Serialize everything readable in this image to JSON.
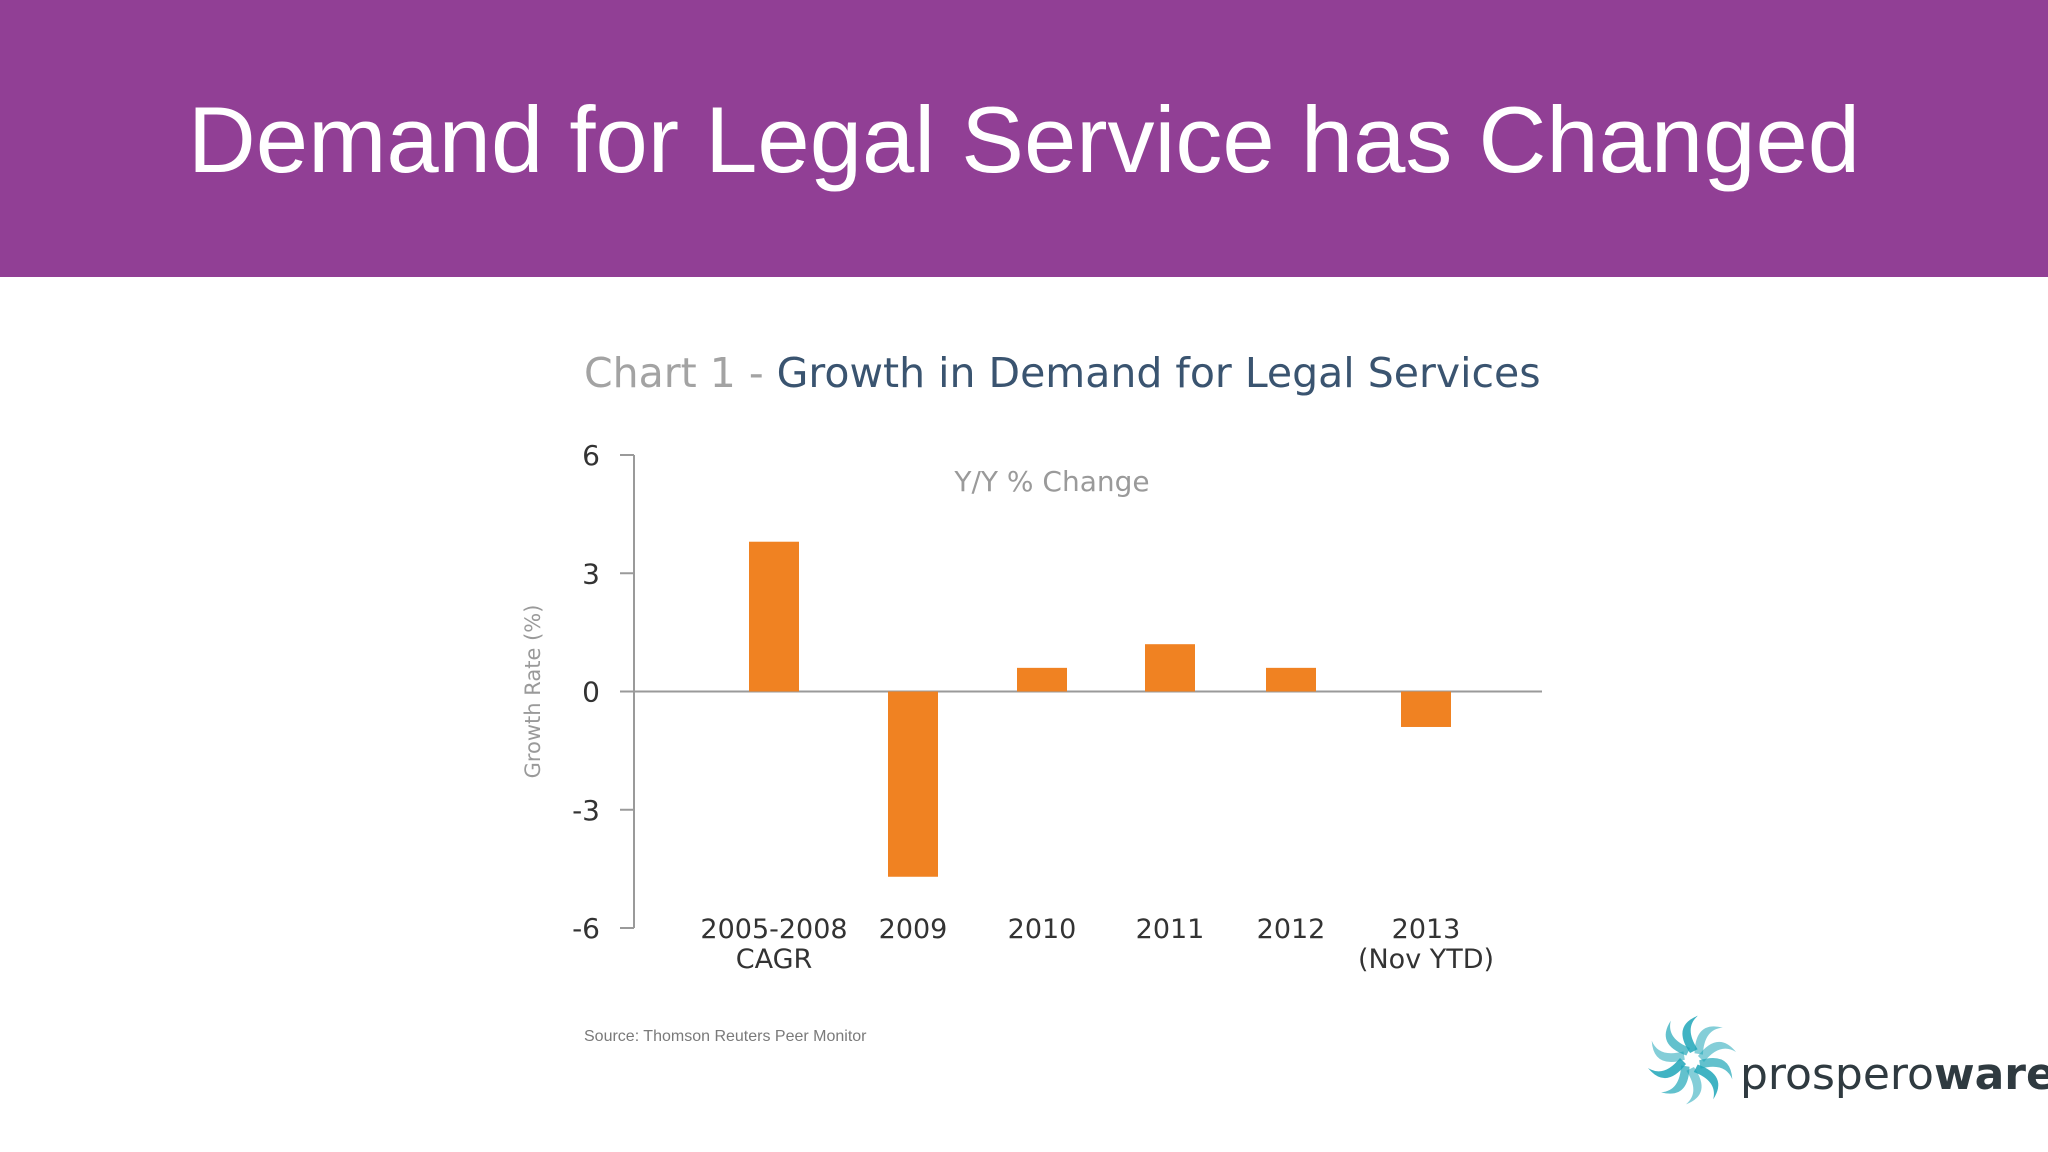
{
  "slide": {
    "title": "Demand for Legal Service has Changed"
  },
  "colors": {
    "header_band": "#913f95",
    "bar": "#f08222",
    "axis": "#9a9a9a",
    "tick_text": "#333333",
    "chart_title_prefix": "#a3a3a3",
    "chart_title_main": "#3a5470",
    "logo_swirl": "#1fa6b8"
  },
  "chart_data": {
    "type": "bar",
    "title_prefix": "Chart 1 - ",
    "title": "Growth in Demand for Legal Services",
    "subtitle": "Y/Y % Change",
    "xlabel": "",
    "ylabel": "Growth Rate (%)",
    "ylim": [
      -6,
      6
    ],
    "yticks": [
      6,
      3,
      0,
      -3,
      -6
    ],
    "categories": [
      [
        "2005-2008",
        "CAGR"
      ],
      [
        "2009"
      ],
      [
        "2010"
      ],
      [
        "2011"
      ],
      [
        "2012"
      ],
      [
        "2013",
        "(Nov YTD)"
      ]
    ],
    "values": [
      3.8,
      -4.7,
      0.6,
      1.2,
      0.6,
      -0.9
    ],
    "grid": false,
    "legend": "none"
  },
  "source": "Source: Thomson Reuters Peer Monitor",
  "logo": {
    "text_light": "prospero",
    "text_bold": "ware",
    "icon": "swirl-logo-icon"
  }
}
